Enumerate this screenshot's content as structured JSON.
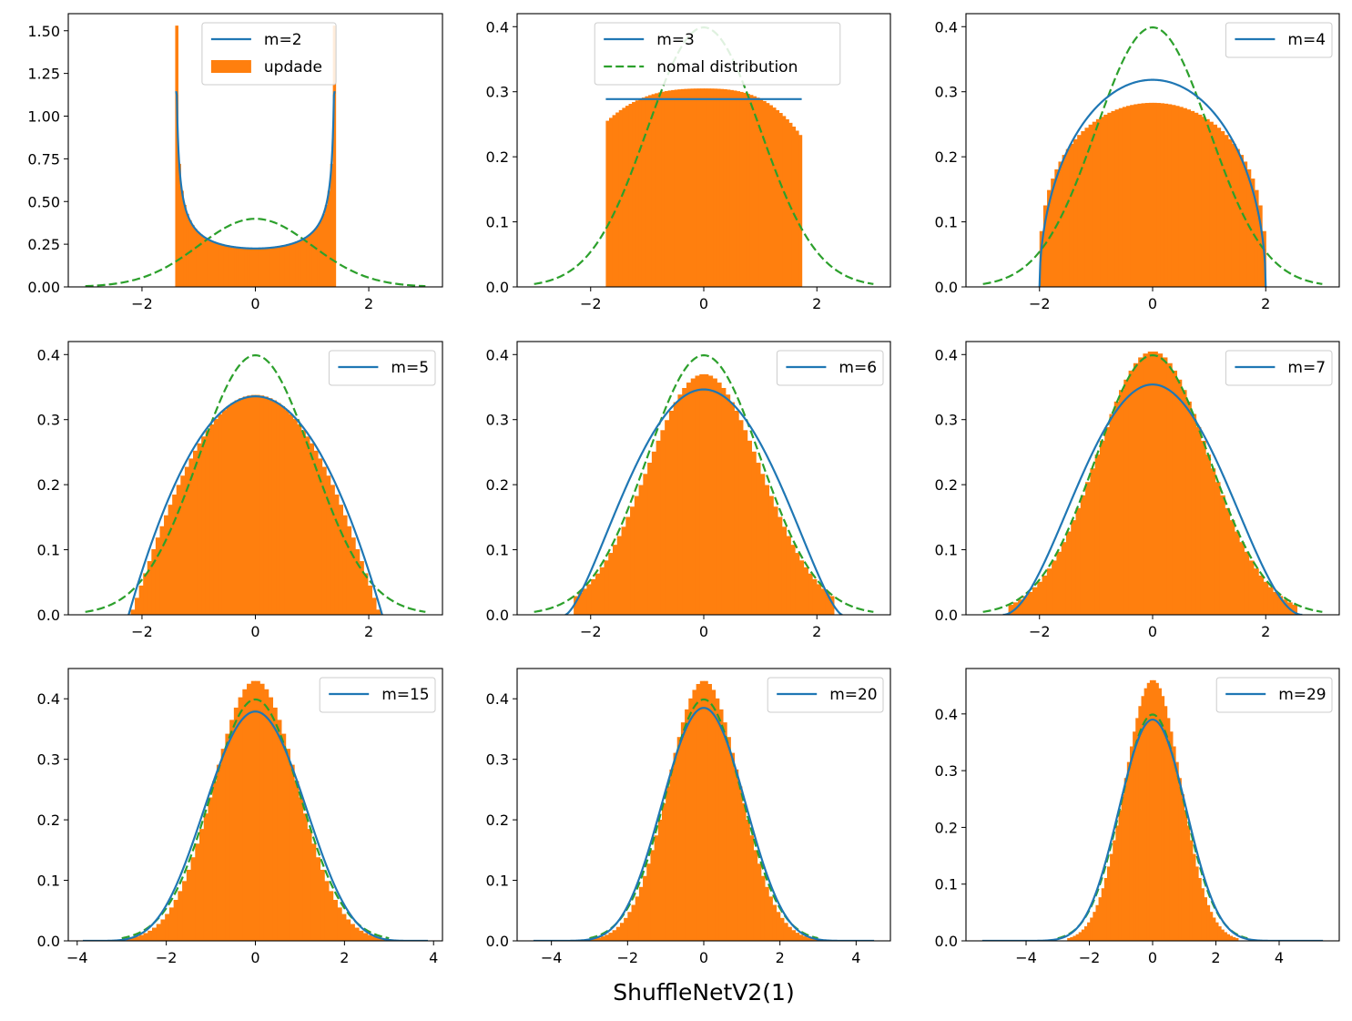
{
  "figure": {
    "xlabel": "ShuffleNetV2(1)",
    "colors": {
      "theory": "#1f77b4",
      "hist": "#ff7f0e",
      "normal": "#2ca02c"
    }
  },
  "chart_data": [
    {
      "type": "histogram+line",
      "m": 2,
      "xlim": [
        -3.3,
        3.3
      ],
      "ylim": [
        0,
        1.6
      ],
      "xticks": [
        -2,
        0,
        2
      ],
      "xtick_labels": [
        "−2",
        "0",
        "2"
      ],
      "yticks": [
        0,
        0.25,
        0.5,
        0.75,
        1.0,
        1.25,
        1.5
      ],
      "ytick_labels": [
        "0.00",
        "0.25",
        "0.50",
        "0.75",
        "1.00",
        "1.25",
        "1.50"
      ],
      "hist": {
        "range": [
          -1.414,
          1.414
        ],
        "bins": 60,
        "kind": "arcsine",
        "peak": 1.53
      },
      "theory": {
        "kind": "arcsine",
        "range": [
          -1.414,
          1.414
        ],
        "center": 0.225,
        "edge": 1.14
      },
      "show_normal": true,
      "legend": {
        "position": "upper center",
        "entries": [
          {
            "type": "line",
            "key": "theory",
            "label": "m=2"
          },
          {
            "type": "patch",
            "key": "hist",
            "label": "updade"
          }
        ]
      }
    },
    {
      "type": "histogram+line",
      "m": 3,
      "xlim": [
        -3.3,
        3.3
      ],
      "ylim": [
        0,
        0.42
      ],
      "xticks": [
        -2,
        0,
        2
      ],
      "xtick_labels": [
        "−2",
        "0",
        "2"
      ],
      "yticks": [
        0,
        0.1,
        0.2,
        0.3,
        0.4
      ],
      "ytick_labels": [
        "0.0",
        "0.1",
        "0.2",
        "0.3",
        "0.4"
      ],
      "hist": {
        "range": [
          -1.732,
          1.732
        ],
        "bins": 60,
        "kind": "flat",
        "center": 0.305,
        "edge_left": 0.265,
        "edge_right": 0.242
      },
      "theory": {
        "kind": "flat",
        "range": [
          -1.732,
          1.732
        ],
        "value": 0.2887
      },
      "show_normal": true,
      "legend": {
        "position": "upper center",
        "entries": [
          {
            "type": "line",
            "key": "theory",
            "label": "m=3"
          },
          {
            "type": "dashed",
            "key": "normal",
            "label": "nomal distribution"
          }
        ]
      }
    },
    {
      "type": "histogram+line",
      "m": 4,
      "xlim": [
        -3.3,
        3.3
      ],
      "ylim": [
        0,
        0.42
      ],
      "xticks": [
        -2,
        0,
        2
      ],
      "xtick_labels": [
        "−2",
        "0",
        "2"
      ],
      "yticks": [
        0,
        0.1,
        0.2,
        0.3,
        0.4
      ],
      "ytick_labels": [
        "0.0",
        "0.1",
        "0.2",
        "0.3",
        "0.4"
      ],
      "hist": {
        "range": [
          -2.0,
          2.0
        ],
        "bins": 60,
        "kind": "beta",
        "a": 0.35,
        "peak": 0.283
      },
      "theory": {
        "kind": "semicircle",
        "range": [
          -2.0,
          2.0
        ],
        "peak": 0.3183
      },
      "show_normal": true,
      "legend": {
        "position": "upper right",
        "entries": [
          {
            "type": "line",
            "key": "theory",
            "label": "m=4"
          }
        ]
      }
    },
    {
      "type": "histogram+line",
      "m": 5,
      "xlim": [
        -3.3,
        3.3
      ],
      "ylim": [
        0,
        0.42
      ],
      "xticks": [
        -2,
        0,
        2
      ],
      "xtick_labels": [
        "−2",
        "0",
        "2"
      ],
      "yticks": [
        0,
        0.1,
        0.2,
        0.3,
        0.4
      ],
      "ytick_labels": [
        "0.0",
        "0.1",
        "0.2",
        "0.3",
        "0.4"
      ],
      "hist": {
        "range": [
          -2.2,
          2.2
        ],
        "bins": 60,
        "kind": "beta",
        "a": 1.1,
        "peak": 0.338
      },
      "theory": {
        "kind": "beta",
        "range": [
          -2.236,
          2.236
        ],
        "a": 1.0,
        "peak": 0.3358
      },
      "show_normal": true,
      "legend": {
        "position": "upper right",
        "entries": [
          {
            "type": "line",
            "key": "theory",
            "label": "m=5"
          }
        ]
      }
    },
    {
      "type": "histogram+line",
      "m": 6,
      "xlim": [
        -3.3,
        3.3
      ],
      "ylim": [
        0,
        0.42
      ],
      "xticks": [
        -2,
        0,
        2
      ],
      "xtick_labels": [
        "−2",
        "0",
        "2"
      ],
      "yticks": [
        0,
        0.1,
        0.2,
        0.3,
        0.4
      ],
      "ytick_labels": [
        "0.0",
        "0.1",
        "0.2",
        "0.3",
        "0.4"
      ],
      "hist": {
        "range": [
          -2.3,
          2.3
        ],
        "bins": 60,
        "kind": "gauss",
        "sigma": 1.0,
        "peak": 0.37
      },
      "theory": {
        "kind": "beta",
        "range": [
          -2.449,
          2.449
        ],
        "a": 1.5,
        "peak": 0.3464
      },
      "show_normal": true,
      "legend": {
        "position": "upper right",
        "entries": [
          {
            "type": "line",
            "key": "theory",
            "label": "m=6"
          }
        ]
      }
    },
    {
      "type": "histogram+line",
      "m": 7,
      "xlim": [
        -3.3,
        3.3
      ],
      "ylim": [
        0,
        0.42
      ],
      "xticks": [
        -2,
        0,
        2
      ],
      "xtick_labels": [
        "−2",
        "0",
        "2"
      ],
      "yticks": [
        0,
        0.1,
        0.2,
        0.3,
        0.4
      ],
      "ytick_labels": [
        "0.0",
        "0.1",
        "0.2",
        "0.3",
        "0.4"
      ],
      "hist": {
        "range": [
          -2.55,
          2.55
        ],
        "bins": 60,
        "kind": "gauss",
        "sigma": 0.98,
        "peak": 0.405
      },
      "theory": {
        "kind": "beta",
        "range": [
          -2.646,
          2.646
        ],
        "a": 2.0,
        "peak": 0.354
      },
      "show_normal": true,
      "legend": {
        "position": "upper right",
        "entries": [
          {
            "type": "line",
            "key": "theory",
            "label": "m=7"
          }
        ]
      }
    },
    {
      "type": "histogram+line",
      "m": 15,
      "xlim": [
        -4.2,
        4.2
      ],
      "ylim": [
        0,
        0.45
      ],
      "xticks": [
        -4,
        -2,
        0,
        2,
        4
      ],
      "xtick_labels": [
        "−4",
        "−2",
        "0",
        "2",
        "4"
      ],
      "yticks": [
        0,
        0.1,
        0.2,
        0.3,
        0.4
      ],
      "ytick_labels": [
        "0.0",
        "0.1",
        "0.2",
        "0.3",
        "0.4"
      ],
      "hist": {
        "range": [
          -2.9,
          2.9
        ],
        "bins": 60,
        "kind": "gauss",
        "sigma": 0.93,
        "peak": 0.43
      },
      "theory": {
        "kind": "beta",
        "range": [
          -3.873,
          3.873
        ],
        "a": 6.0,
        "peak": 0.379
      },
      "show_normal": true,
      "legend": {
        "position": "upper right",
        "entries": [
          {
            "type": "line",
            "key": "theory",
            "label": "m=15"
          }
        ]
      }
    },
    {
      "type": "histogram+line",
      "m": 20,
      "xlim": [
        -4.9,
        4.9
      ],
      "ylim": [
        0,
        0.45
      ],
      "xticks": [
        -4,
        -2,
        0,
        2,
        4
      ],
      "xtick_labels": [
        "−4",
        "−2",
        "0",
        "2",
        "4"
      ],
      "yticks": [
        0,
        0.1,
        0.2,
        0.3,
        0.4
      ],
      "ytick_labels": [
        "0.0",
        "0.1",
        "0.2",
        "0.3",
        "0.4"
      ],
      "hist": {
        "range": [
          -3.0,
          3.0
        ],
        "bins": 60,
        "kind": "gauss",
        "sigma": 0.93,
        "peak": 0.43
      },
      "theory": {
        "kind": "beta",
        "range": [
          -4.472,
          4.472
        ],
        "a": 8.5,
        "peak": 0.385
      },
      "show_normal": true,
      "legend": {
        "position": "upper right",
        "entries": [
          {
            "type": "line",
            "key": "theory",
            "label": "m=20"
          }
        ]
      }
    },
    {
      "type": "histogram+line",
      "m": 29,
      "xlim": [
        -5.9,
        5.9
      ],
      "ylim": [
        0,
        0.48
      ],
      "xticks": [
        -4,
        -2,
        0,
        2,
        4
      ],
      "xtick_labels": [
        "−4",
        "−2",
        "0",
        "2",
        "4"
      ],
      "yticks": [
        0,
        0.1,
        0.2,
        0.3,
        0.4
      ],
      "ytick_labels": [
        "0.0",
        "0.1",
        "0.2",
        "0.3",
        "0.4"
      ],
      "hist": {
        "range": [
          -2.7,
          2.7
        ],
        "bins": 60,
        "kind": "gauss",
        "sigma": 0.88,
        "peak": 0.46
      },
      "theory": {
        "kind": "beta",
        "range": [
          -5.385,
          5.385
        ],
        "a": 13.0,
        "peak": 0.39
      },
      "show_normal": true,
      "legend": {
        "position": "upper right",
        "entries": [
          {
            "type": "line",
            "key": "theory",
            "label": "m=29"
          }
        ]
      }
    }
  ]
}
